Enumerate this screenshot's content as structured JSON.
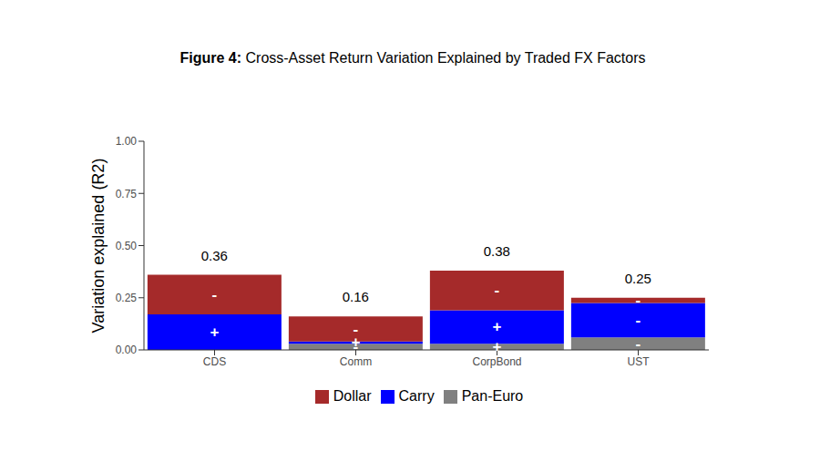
{
  "chart_data": {
    "type": "bar",
    "title": "Figure 4: Cross-Asset Return Variation Explained by Traded FX Factors",
    "y_label": "Variation explained (R2)",
    "categories": [
      "CDS",
      "Comm",
      "CorpBond",
      "UST"
    ],
    "stacked": true,
    "legend": "bottom",
    "grid": false,
    "ylim": [
      0,
      1.0
    ],
    "yticks": [
      {
        "value": 0,
        "label": "0.00"
      },
      {
        "value": 0.25,
        "label": "0.25"
      },
      {
        "value": 0.5,
        "label": "0.50"
      },
      {
        "value": 0.75,
        "label": "0.75"
      },
      {
        "value": 1.0,
        "label": "1.00"
      }
    ],
    "totals": [
      0.36,
      0.16,
      0.38,
      0.25
    ],
    "series": [
      {
        "name": "Dollar",
        "color": "#A52A2A",
        "values": [
          0.19,
          0.12,
          0.19,
          0.025
        ],
        "signs": [
          "-",
          "-",
          "-",
          "-"
        ]
      },
      {
        "name": "Carry",
        "color": "#0000FF",
        "values": [
          0.17,
          0.01,
          0.16,
          0.165
        ],
        "signs": [
          "+",
          "+",
          "+",
          "-"
        ]
      },
      {
        "name": "Pan-Euro",
        "color": "#808080",
        "values": [
          0.0,
          0.03,
          0.03,
          0.06
        ],
        "signs": [
          "-",
          "+",
          "-",
          "-"
        ]
      }
    ]
  }
}
